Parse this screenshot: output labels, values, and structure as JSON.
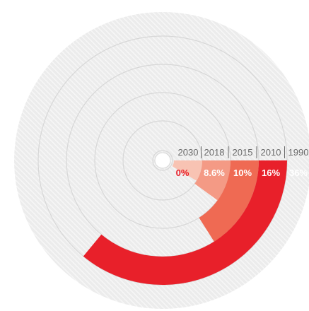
{
  "chart_data": {
    "type": "radial-bar",
    "title": "",
    "rings": [
      {
        "year": "2030",
        "label": "0%",
        "value": 0,
        "color": "#e8202a"
      },
      {
        "year": "2018",
        "label": "8.6%",
        "value": 8.6,
        "color": "#f8c3b3"
      },
      {
        "year": "2015",
        "label": "10%",
        "value": 10,
        "color": "#f49a85"
      },
      {
        "year": "2010",
        "label": "16%",
        "value": 16,
        "color": "#ef6a53"
      },
      {
        "year": "1990",
        "label": "36%",
        "value": 36,
        "color": "#e8202a"
      }
    ],
    "max_value": 100,
    "background_color": "#ececec",
    "hatch_color": "#ffffff"
  }
}
